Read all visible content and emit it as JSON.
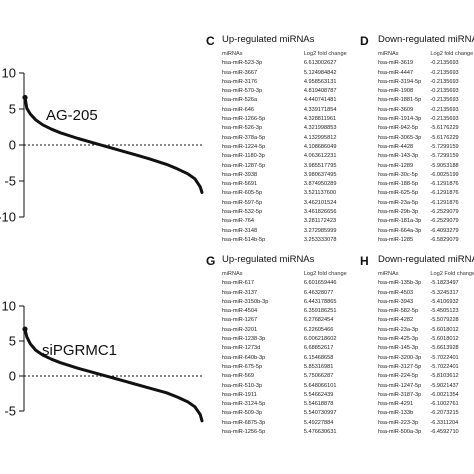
{
  "panels": {
    "C": {
      "letter": "C",
      "title": "Up-regulated miRNAs",
      "col_headers": [
        "miRNAs",
        "Log2 fold change"
      ],
      "rows": [
        [
          "hsa-miR-523-3p",
          "6.613002627"
        ],
        [
          "hsa-miR-3667",
          "5.124984842"
        ],
        [
          "hsa-miR-3176",
          "4.958563131"
        ],
        [
          "hsa-miR-570-3p",
          "4.819408787"
        ],
        [
          "hsa-miR-526a",
          "4.440741481"
        ],
        [
          "hsa-miR-646",
          "4.339171854"
        ],
        [
          "hsa-miR-1266-5p",
          "4.328811961"
        ],
        [
          "hsa-miR-526-3p",
          "4.321998853"
        ],
        [
          "hsa-miR-378a-5p",
          "4.132995812"
        ],
        [
          "hsa-miR-1224-5p",
          "4.108686049"
        ],
        [
          "hsa-miR-1180-3p",
          "4.063612231"
        ],
        [
          "hsa-miR-1287-5p",
          "3.985517795"
        ],
        [
          "hsa-miR-3938",
          "3.980637495"
        ],
        [
          "hsa-miR-5691",
          "3.874950289"
        ],
        [
          "hsa-miR-605-5p",
          "3.521137600"
        ],
        [
          "hsa-miR-597-5p",
          "3.462101524"
        ],
        [
          "hsa-miR-532-5p",
          "3.461826656"
        ],
        [
          "hsa-miR-764",
          "3.281172423"
        ],
        [
          "hsa-miR-3148",
          "3.272985999"
        ],
        [
          "hsa-miR-514b-5p",
          "3.253333078"
        ]
      ]
    },
    "D": {
      "letter": "D",
      "title": "Down-regulated miRNAs",
      "col_headers": [
        "miRNAs",
        "Log2 fold change"
      ],
      "rows": [
        [
          "hsa-miR-3619",
          "-0.2135693"
        ],
        [
          "hsa-miR-4447",
          "-0.2135693"
        ],
        [
          "hsa-miR-3194-5p",
          "-0.2135693"
        ],
        [
          "hsa-miR-1908",
          "-0.2135693"
        ],
        [
          "hsa-miR-1881-5p",
          "-0.2135693"
        ],
        [
          "hsa-miR-3609",
          "-0.2135693"
        ],
        [
          "hsa-miR-1914-3p",
          "-0.2135693"
        ],
        [
          "hsa-miR-942-5p",
          "-5.6176229"
        ],
        [
          "hsa-miR-3065-3p",
          "-5.6176229"
        ],
        [
          "hsa-miR-4428",
          "-5.7299159"
        ],
        [
          "hsa-miR-143-3p",
          "-5.7299159"
        ],
        [
          "hsa-miR-1289",
          "-5.9053188"
        ],
        [
          "hsa-miR-30c-5p",
          "-6.0025199"
        ],
        [
          "hsa-miR-188-5p",
          "-6.1291876"
        ],
        [
          "hsa-miR-625-5p",
          "-6.1291876"
        ],
        [
          "hsa-miR-23a-5p",
          "-6.1291876"
        ],
        [
          "hsa-miR-29b-3p",
          "-6.2529079"
        ],
        [
          "hsa-miR-181a-3p",
          "-6.2529079"
        ],
        [
          "hsa-miR-664a-3p",
          "-6.4093279"
        ],
        [
          "hsa-miR-1285",
          "-6.5829079"
        ]
      ]
    },
    "G": {
      "letter": "G",
      "title": "Up-regulated miRNAs",
      "col_headers": [
        "miRNAs",
        "Log2 fold change"
      ],
      "rows": [
        [
          "hsa-miR-617",
          "6.601659446"
        ],
        [
          "hsa-miR-3137",
          "6.46328077"
        ],
        [
          "hsa-miR-3150b-3p",
          "6.443178865"
        ],
        [
          "hsa-miR-4504",
          "6.359186251"
        ],
        [
          "hsa-miR-1267",
          "6.27682454"
        ],
        [
          "hsa-miR-3201",
          "6.22605466"
        ],
        [
          "hsa-miR-1238-3p",
          "6.006218602"
        ],
        [
          "hsa-miR-1273d",
          "6.68852617"
        ],
        [
          "hsa-miR-640b-3p",
          "6.15468658"
        ],
        [
          "hsa-miR-675-5p",
          "5.85316981"
        ],
        [
          "hsa-miR-569",
          "5.75066287"
        ],
        [
          "hsa-miR-510-3p",
          "5.648066101"
        ],
        [
          "hsa-miR-1911",
          "5.54662439"
        ],
        [
          "hsa-miR-3124-5p",
          "5.54618878"
        ],
        [
          "hsa-miR-509-3p",
          "5.540730997"
        ],
        [
          "hsa-miR-6875-3p",
          "5.49227884"
        ],
        [
          "hsa-miR-1256-5p",
          "5.476630631"
        ]
      ]
    },
    "H": {
      "letter": "H",
      "title": "Down-regulated miRNAs",
      "col_headers": [
        "miRNAs",
        "Log2 Fold change"
      ],
      "rows": [
        [
          "hsa-miR-135b-3p",
          "-5.1823497"
        ],
        [
          "hsa-miR-4503",
          "-5.3245317"
        ],
        [
          "hsa-miR-3943",
          "-5.4106932"
        ],
        [
          "hsa-miR-582-5p",
          "-5.4505123"
        ],
        [
          "hsa-miR-4282",
          "-5.5079228"
        ],
        [
          "hsa-miR-23a-3p",
          "-5.6018012"
        ],
        [
          "hsa-miR-425-3p",
          "-5.6018012"
        ],
        [
          "hsa-miR-145-3p",
          "-5.6613928"
        ],
        [
          "hsa-miR-3200-3p",
          "-5.7022401"
        ],
        [
          "hsa-miR-3127-5p",
          "-5.7022401"
        ],
        [
          "hsa-miR-224-5p",
          "-5.8103612"
        ],
        [
          "hsa-miR-1247-5p",
          "-5.9021437"
        ],
        [
          "hsa-miR-3187-3p",
          "-6.0021354"
        ],
        [
          "hsa-miR-4291",
          "-6.1002761"
        ],
        [
          "hsa-miR-133b",
          "-6.2073215"
        ],
        [
          "hsa-miR-223-3p",
          "-6.3311204"
        ],
        [
          "hsa-miR-500a-3p",
          "-6.4592710"
        ]
      ]
    }
  },
  "plots": {
    "top": {
      "label": "AG-205"
    },
    "bottom": {
      "label": "siPGRMC1"
    }
  },
  "chart_data": [
    {
      "type": "line",
      "title": "",
      "annotation": "AG-205",
      "xlabel": "",
      "ylabel": "",
      "ylim": [
        -10,
        10
      ],
      "yticks": [
        "10",
        "5",
        "0",
        "-5",
        "-10"
      ],
      "reference_line": 0,
      "series": [
        {
          "x": [
            0.0,
            0.01,
            0.03,
            0.06,
            0.1,
            0.15,
            0.2,
            0.3,
            0.4,
            0.5,
            0.6,
            0.7,
            0.8,
            0.86,
            0.92,
            0.96,
            0.99,
            1.0
          ],
          "values": [
            6.6,
            5.1,
            4.3,
            3.5,
            2.8,
            2.2,
            1.7,
            0.9,
            0.2,
            -0.5,
            -1.2,
            -1.9,
            -2.7,
            -3.3,
            -4.0,
            -4.7,
            -5.8,
            -6.6
          ]
        }
      ]
    },
    {
      "type": "line",
      "title": "",
      "annotation": "siPGRMC1",
      "xlabel": "",
      "ylabel": "",
      "ylim": [
        -5,
        10
      ],
      "yticks": [
        "10",
        "5",
        "0",
        "-5"
      ],
      "reference_line": 0,
      "series": [
        {
          "x": [
            0.0,
            0.01,
            0.03,
            0.06,
            0.1,
            0.15,
            0.2,
            0.3,
            0.4,
            0.5,
            0.6,
            0.7,
            0.8,
            0.86,
            0.92,
            0.96,
            0.99,
            1.0
          ],
          "values": [
            6.7,
            5.6,
            4.6,
            3.7,
            3.0,
            2.4,
            1.9,
            1.1,
            0.4,
            -0.3,
            -1.0,
            -1.7,
            -2.4,
            -3.0,
            -3.7,
            -4.4,
            -5.5,
            -6.4
          ]
        }
      ]
    }
  ]
}
